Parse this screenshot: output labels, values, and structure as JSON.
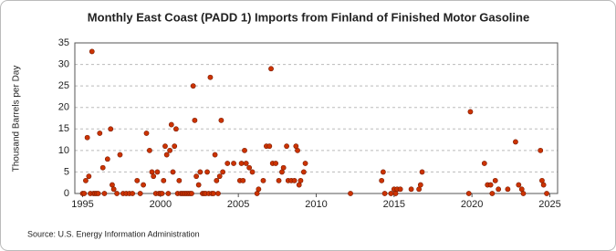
{
  "chart_data": {
    "type": "scatter",
    "title": "Monthly East Coast (PADD 1) Imports from Finland of Finished Motor Gasoline",
    "y_label": "Thousand Barrels per Day",
    "source": "Source: U.S. Energy Information Administration",
    "color": "#cc3300",
    "x": [
      1995.0,
      1995.1,
      1995.2,
      1995.3,
      1995.4,
      1995.5,
      1995.6,
      1995.7,
      1995.8,
      1995.9,
      1996.0,
      1996.1,
      1996.3,
      1996.4,
      1996.6,
      1996.8,
      1996.9,
      1997.0,
      1997.2,
      1997.4,
      1997.6,
      1997.8,
      1998.0,
      1998.2,
      1998.5,
      1998.7,
      1998.9,
      1999.1,
      1999.3,
      1999.45,
      1999.55,
      1999.7,
      1999.8,
      1999.9,
      2000.0,
      2000.1,
      2000.2,
      2000.3,
      2000.4,
      2000.5,
      2000.6,
      2000.7,
      2000.8,
      2000.9,
      2001.0,
      2001.1,
      2001.2,
      2001.3,
      2001.4,
      2001.5,
      2001.6,
      2001.7,
      2001.8,
      2001.9,
      2002.0,
      2002.1,
      2002.2,
      2002.3,
      2002.45,
      2002.55,
      2002.7,
      2002.8,
      2002.9,
      2003.0,
      2003.1,
      2003.2,
      2003.3,
      2003.4,
      2003.5,
      2003.6,
      2003.7,
      2003.8,
      2003.9,
      2004.0,
      2004.3,
      2004.7,
      2005.1,
      2005.2,
      2005.3,
      2005.4,
      2005.5,
      2005.7,
      2005.9,
      2006.2,
      2006.3,
      2006.6,
      2006.8,
      2007.0,
      2007.1,
      2007.2,
      2007.4,
      2007.6,
      2007.8,
      2007.9,
      2008.1,
      2008.2,
      2008.4,
      2008.6,
      2008.7,
      2008.8,
      2008.9,
      2009.0,
      2009.2,
      2009.3,
      2012.2,
      2014.2,
      2014.3,
      2014.4,
      2014.8,
      2015.0,
      2015.1,
      2015.2,
      2015.4,
      2016.1,
      2016.6,
      2016.7,
      2016.8,
      2019.8,
      2019.9,
      2020.8,
      2021.0,
      2021.2,
      2021.3,
      2021.5,
      2021.7,
      2022.3,
      2022.8,
      2023.0,
      2023.2,
      2023.3,
      2024.4,
      2024.5,
      2024.6,
      2024.8
    ],
    "values": [
      0,
      0,
      3,
      13,
      4,
      0,
      33,
      0,
      0,
      0,
      0,
      14,
      6,
      0,
      8,
      15,
      2,
      1,
      0,
      9,
      0,
      0,
      0,
      0,
      3,
      0,
      2,
      14,
      10,
      5,
      4,
      0,
      5,
      0,
      0,
      0,
      3,
      11,
      9,
      0,
      10,
      16,
      5,
      11,
      15,
      0,
      3,
      0,
      0,
      0,
      0,
      0,
      0,
      0,
      0,
      25,
      17,
      4,
      2,
      5,
      0,
      0,
      0,
      5,
      0,
      27,
      0,
      0,
      9,
      3,
      0,
      4,
      17,
      5,
      7,
      7,
      3,
      7,
      3,
      10,
      7,
      6,
      5,
      0,
      1,
      3,
      11,
      11,
      29,
      7,
      7,
      3,
      5,
      6,
      11,
      3,
      3,
      3,
      11,
      10,
      2,
      3,
      5,
      7,
      0,
      3,
      5,
      0,
      0,
      1,
      0,
      1,
      1,
      1,
      1,
      2,
      5,
      0,
      19,
      7,
      2,
      2,
      0,
      3,
      1,
      1,
      12,
      2,
      1,
      0,
      10,
      3,
      2,
      0
    ],
    "xlim": [
      1994.5,
      2025.5
    ],
    "xticks": [
      1995,
      2000,
      2005,
      2010,
      2015,
      2020,
      2025
    ],
    "ylim": [
      0,
      35
    ],
    "yticks": [
      0,
      5,
      10,
      15,
      20,
      25,
      30,
      35
    ],
    "grid": true
  }
}
